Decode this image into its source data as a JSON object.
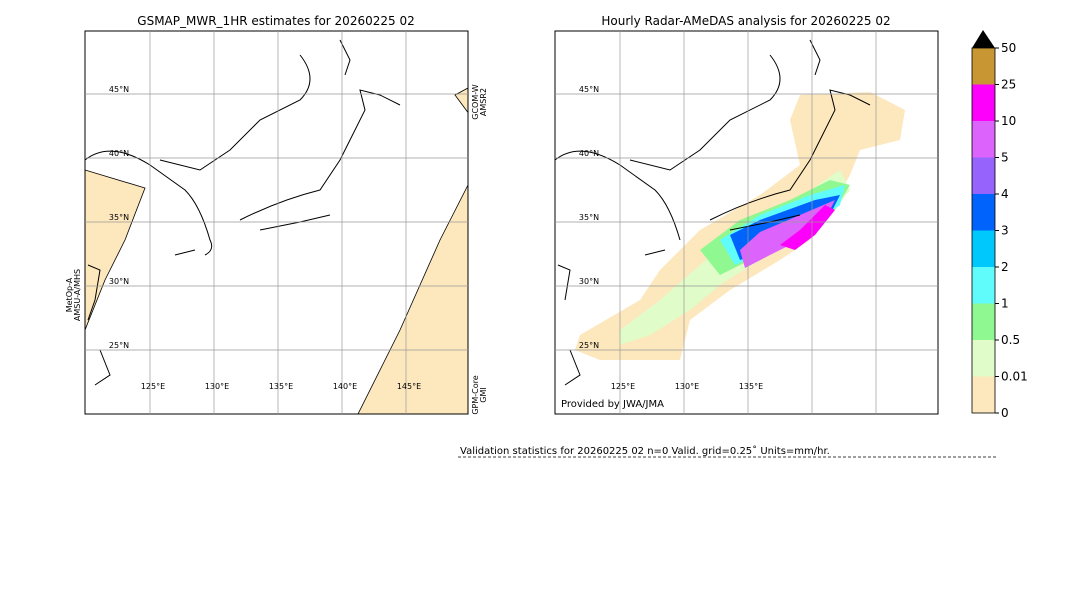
{
  "left_panel": {
    "title": "GSMAP_MWR_1HR estimates for 20260225 02",
    "lat_labels": [
      "45°N",
      "40°N",
      "35°N",
      "30°N",
      "25°N"
    ],
    "lon_labels": [
      "125°E",
      "130°E",
      "135°E",
      "140°E",
      "145°E"
    ],
    "sensor_labels": [
      [
        "MetOp-A",
        "AMSU-A/MHS"
      ],
      [
        "GCOM-W",
        "AMSR2"
      ],
      [
        "GPM-Core",
        "GMI"
      ]
    ]
  },
  "right_panel": {
    "title": "Hourly Radar-AMeDAS analysis for 20260225 02",
    "lat_labels": [
      "45°N",
      "40°N",
      "35°N",
      "30°N",
      "25°N"
    ],
    "lon_labels": [
      "125°E",
      "130°E",
      "135°E"
    ],
    "credit": "Provided by JWA/JMA"
  },
  "colorbar": {
    "labels": [
      "0",
      "0.01",
      "0.5",
      "1",
      "2",
      "3",
      "4",
      "5",
      "10",
      "25",
      "50"
    ]
  },
  "validation": "Validation statistics for 20260225 02  n=0 Valid. grid=0.25˚ Units=mm/hr."
}
